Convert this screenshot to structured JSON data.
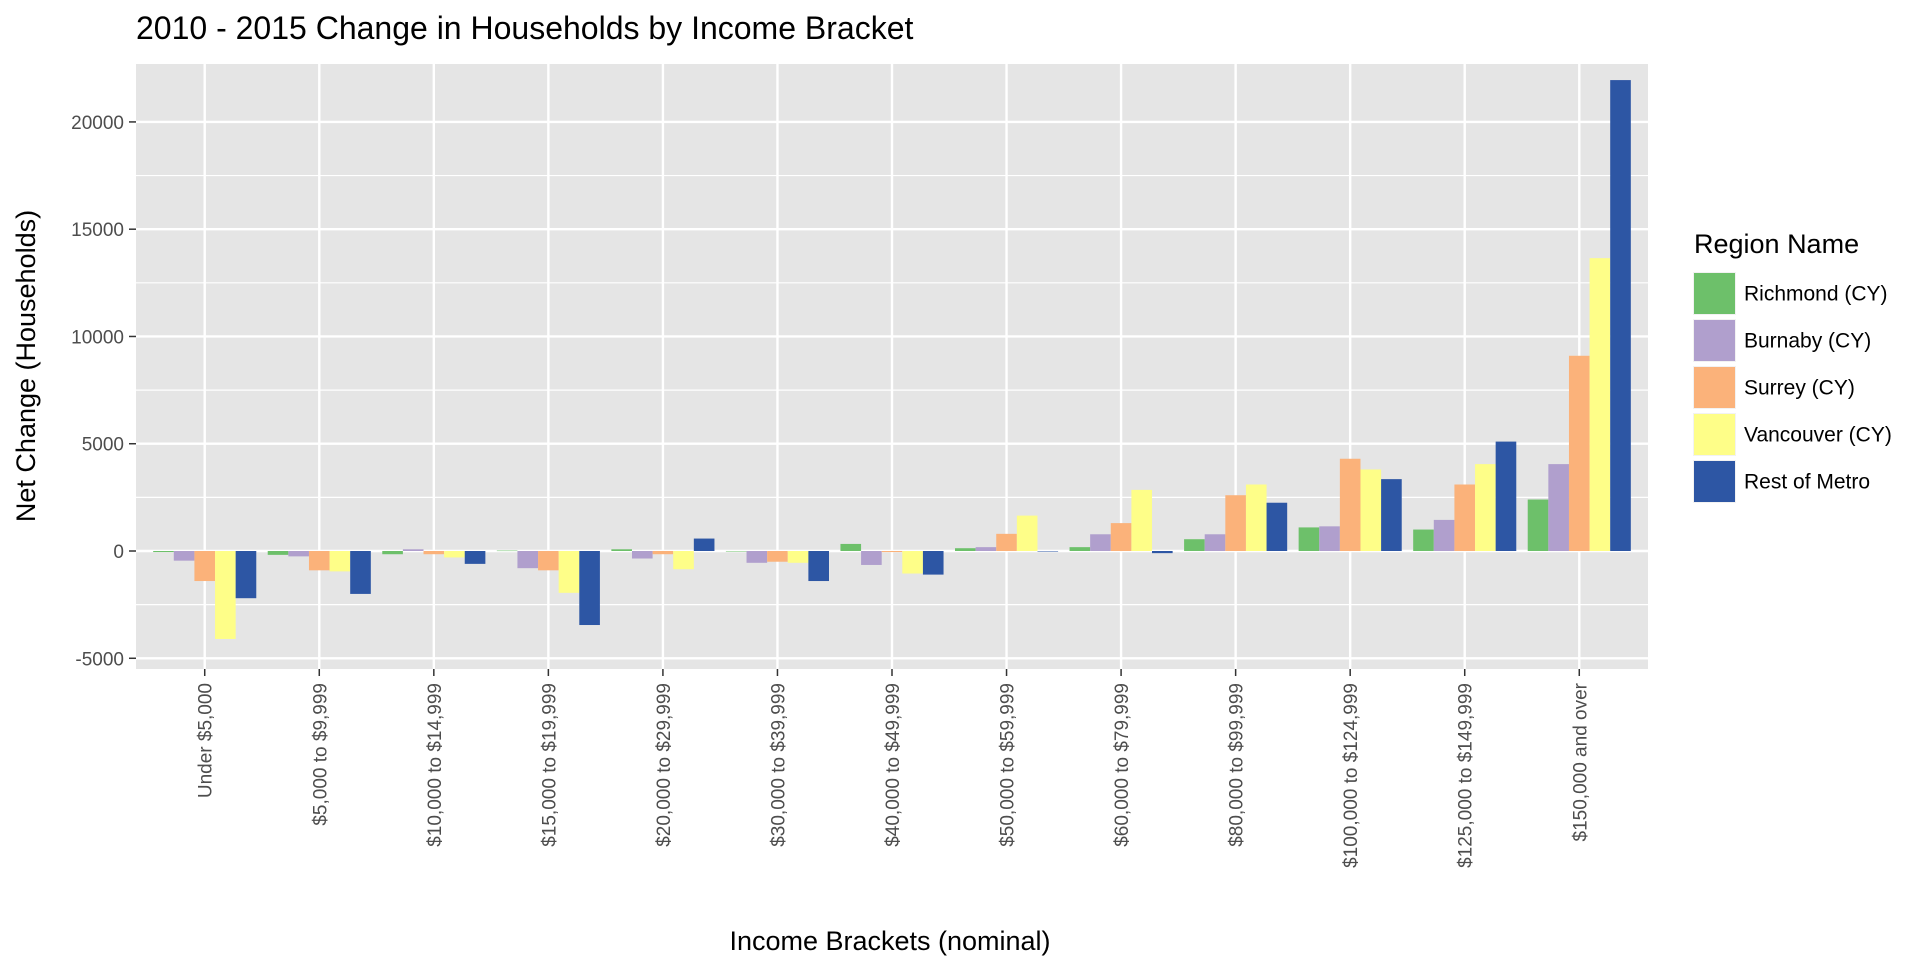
{
  "chart_data": {
    "type": "bar",
    "title": "2010 - 2015 Change in Households by Income Bracket",
    "xlabel": "Income Brackets (nominal)",
    "ylabel": "Net Change (Households)",
    "ylim": [
      -5500,
      22700
    ],
    "yticks": [
      -5000,
      0,
      5000,
      10000,
      15000,
      20000
    ],
    "grid": true,
    "legend_position": "right",
    "legend_title": "Region Name",
    "categories": [
      "Under $5,000",
      "$5,000 to $9,999",
      "$10,000 to $14,999",
      "$15,000 to $19,999",
      "$20,000 to $29,999",
      "$30,000 to $39,999",
      "$40,000 to $49,999",
      "$50,000 to $59,999",
      "$60,000 to $79,999",
      "$80,000 to $99,999",
      "$100,000 to $124,999",
      "$125,000 to $149,999",
      "$150,000 and over"
    ],
    "series": [
      {
        "name": "Richmond (CY)",
        "color": "#6dc06a",
        "values": [
          -50,
          -180,
          -150,
          20,
          80,
          -20,
          330,
          130,
          180,
          550,
          1100,
          1000,
          2400
        ]
      },
      {
        "name": "Burnaby (CY)",
        "color": "#b09fcd",
        "values": [
          -450,
          -250,
          80,
          -800,
          -350,
          -550,
          -650,
          180,
          780,
          780,
          1150,
          1450,
          4050
        ]
      },
      {
        "name": "Surrey (CY)",
        "color": "#fbb27a",
        "values": [
          -1400,
          -900,
          -150,
          -900,
          -150,
          -500,
          -50,
          800,
          1300,
          2600,
          4300,
          3100,
          9100
        ]
      },
      {
        "name": "Vancouver (CY)",
        "color": "#fefe88",
        "values": [
          -4100,
          -950,
          -300,
          -1950,
          -850,
          -550,
          -1050,
          1650,
          2850,
          3100,
          3800,
          4050,
          13650
        ]
      },
      {
        "name": "Rest of Metro",
        "color": "#2d56a4",
        "values": [
          -2200,
          -2000,
          -600,
          -3450,
          580,
          -1400,
          -1100,
          0,
          -100,
          2250,
          3350,
          5100,
          21950
        ]
      }
    ]
  },
  "style": {
    "panel_background": "#e5e5e5",
    "grid_color": "#ffffff",
    "text_color": "#4d4d4d"
  }
}
